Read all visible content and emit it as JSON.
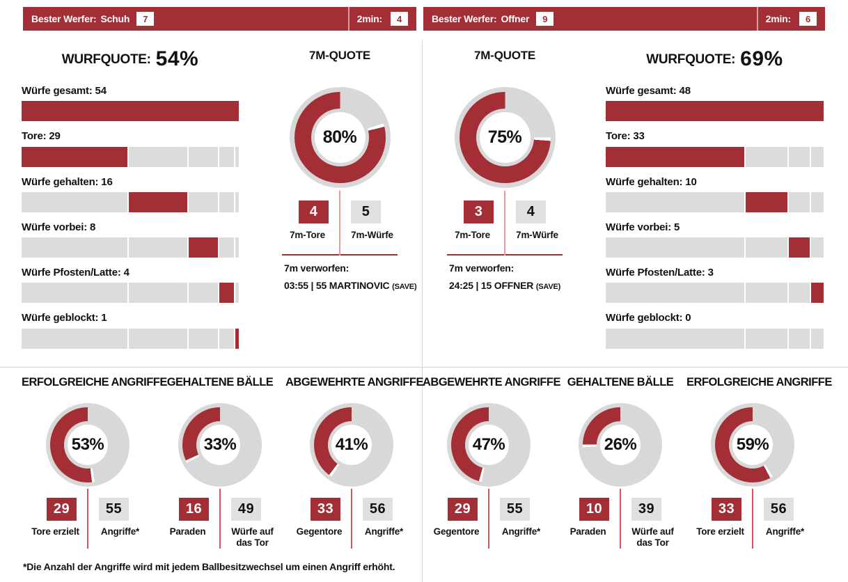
{
  "colors": {
    "accent": "#a32e36",
    "bar_gray": "#dcdcdc",
    "donut_gray": "#d8d8d8",
    "box_gray": "#e0e0e0",
    "pink_line": "#e59a9d",
    "red_line": "#d4575c",
    "divider": "#d2d2d2"
  },
  "headers": [
    {
      "label": "Bester Werfer:",
      "name": "Schuh",
      "number": "7",
      "twomin_label": "2min:",
      "twomin_value": "4"
    },
    {
      "label": "Bester Werfer:",
      "name": "Offner",
      "number": "9",
      "twomin_label": "2min:",
      "twomin_value": "6"
    }
  ],
  "teams": [
    {
      "heading_label": "WURFQUOTE:",
      "heading_value": "54%",
      "bars": [
        {
          "label": "Würfe gesamt: 54",
          "value": 54,
          "total": true
        },
        {
          "label": "Tore: 29",
          "value": 29
        },
        {
          "label": "Würfe gehalten: 16",
          "value": 16
        },
        {
          "label": "Würfe vorbei: 8",
          "value": 8
        },
        {
          "label": "Würfe Pfosten/Latte: 4",
          "value": 4
        },
        {
          "label": "Würfe geblockt: 1",
          "value": 1
        }
      ],
      "sevenm": {
        "title": "7M-QUOTE",
        "pct": 80,
        "pct_label": "80%",
        "goals": "4",
        "throws": "5",
        "goals_label": "7m-Tore",
        "throws_label": "7m-Würfe",
        "missed_label": "7m verworfen:",
        "missed_detail": "03:55 | 55 MARTINOVIC",
        "missed_suffix": "(SAVE)"
      }
    },
    {
      "heading_label": "WURFQUOTE:",
      "heading_value": "69%",
      "bars": [
        {
          "label": "Würfe gesamt: 48",
          "value": 48,
          "total": true
        },
        {
          "label": "Tore: 33",
          "value": 33
        },
        {
          "label": "Würfe gehalten: 10",
          "value": 10
        },
        {
          "label": "Würfe vorbei: 5",
          "value": 5
        },
        {
          "label": "Würfe Pfosten/Latte: 3",
          "value": 3
        },
        {
          "label": "Würfe geblockt: 0",
          "value": 0
        }
      ],
      "sevenm": {
        "title": "7M-QUOTE",
        "pct": 75,
        "pct_label": "75%",
        "goals": "3",
        "throws": "4",
        "goals_label": "7m-Tore",
        "throws_label": "7m-Würfe",
        "missed_label": "7m verworfen:",
        "missed_detail": "24:25 | 15 OFFNER",
        "missed_suffix": "(SAVE)"
      }
    }
  ],
  "bottom": [
    {
      "title": "ERFOLGREICHE ANGRIFFE",
      "pct": 53,
      "pct_label": "53%",
      "red_value": "29",
      "gray_value": "55",
      "red_label": "Tore erzielt",
      "gray_label": "Angriffe*"
    },
    {
      "title": "GEHALTENE BÄLLE",
      "pct": 33,
      "pct_label": "33%",
      "red_value": "16",
      "gray_value": "49",
      "red_label": "Paraden",
      "gray_label": "Würfe auf das Tor"
    },
    {
      "title": "ABGEWEHRTE ANGRIFFE",
      "pct": 41,
      "pct_label": "41%",
      "red_value": "33",
      "gray_value": "56",
      "red_label": "Gegentore",
      "gray_label": "Angriffe*"
    },
    {
      "title": "ABGEWEHRTE ANGRIFFE",
      "pct": 47,
      "pct_label": "47%",
      "red_value": "29",
      "gray_value": "55",
      "red_label": "Gegentore",
      "gray_label": "Angriffe*"
    },
    {
      "title": "GEHALTENE BÄLLE",
      "pct": 26,
      "pct_label": "26%",
      "red_value": "10",
      "gray_value": "39",
      "red_label": "Paraden",
      "gray_label": "Würfe auf das Tor"
    },
    {
      "title": "ERFOLGREICHE ANGRIFFE",
      "pct": 59,
      "pct_label": "59%",
      "red_value": "33",
      "gray_value": "56",
      "red_label": "Tore erzielt",
      "gray_label": "Angriffe*"
    }
  ],
  "footnote": "*Die Anzahl der Angriffe wird mit jedem Ballbesitzwechsel um einen Angriff erhöht.",
  "chart_data": [
    {
      "type": "bar",
      "title": "WURFQUOTE links: 54%",
      "orientation": "horizontal-stacked",
      "categories": [
        "Würfe gesamt",
        "Tore",
        "Würfe gehalten",
        "Würfe vorbei",
        "Würfe Pfosten/Latte",
        "Würfe geblockt"
      ],
      "values": [
        54,
        29,
        16,
        8,
        4,
        1
      ]
    },
    {
      "type": "pie",
      "title": "7M-QUOTE links",
      "percent": 80,
      "labels": [
        "7m-Tore",
        "7m-Würfe"
      ],
      "values": [
        4,
        5
      ],
      "annotation": "7m verworfen: 03:55 | 55 MARTINOVIC (SAVE)"
    },
    {
      "type": "pie",
      "title": "7M-QUOTE rechts",
      "percent": 75,
      "labels": [
        "7m-Tore",
        "7m-Würfe"
      ],
      "values": [
        3,
        4
      ],
      "annotation": "7m verworfen: 24:25 | 15 OFFNER (SAVE)"
    },
    {
      "type": "bar",
      "title": "WURFQUOTE rechts: 69%",
      "orientation": "horizontal-stacked",
      "categories": [
        "Würfe gesamt",
        "Tore",
        "Würfe gehalten",
        "Würfe vorbei",
        "Würfe Pfosten/Latte",
        "Würfe geblockt"
      ],
      "values": [
        48,
        33,
        10,
        5,
        3,
        0
      ]
    },
    {
      "type": "pie",
      "title": "ERFOLGREICHE ANGRIFFE links",
      "percent": 53,
      "labels": [
        "Tore erzielt",
        "Angriffe*"
      ],
      "values": [
        29,
        55
      ]
    },
    {
      "type": "pie",
      "title": "GEHALTENE BÄLLE links",
      "percent": 33,
      "labels": [
        "Paraden",
        "Würfe auf das Tor"
      ],
      "values": [
        16,
        49
      ]
    },
    {
      "type": "pie",
      "title": "ABGEWEHRTE ANGRIFFE links",
      "percent": 41,
      "labels": [
        "Gegentore",
        "Angriffe*"
      ],
      "values": [
        33,
        56
      ]
    },
    {
      "type": "pie",
      "title": "ABGEWEHRTE ANGRIFFE rechts",
      "percent": 47,
      "labels": [
        "Gegentore",
        "Angriffe*"
      ],
      "values": [
        29,
        55
      ]
    },
    {
      "type": "pie",
      "title": "GEHALTENE BÄLLE rechts",
      "percent": 26,
      "labels": [
        "Paraden",
        "Würfe auf das Tor"
      ],
      "values": [
        10,
        39
      ]
    },
    {
      "type": "pie",
      "title": "ERFOLGREICHE ANGRIFFE rechts",
      "percent": 59,
      "labels": [
        "Tore erzielt",
        "Angriffe*"
      ],
      "values": [
        33,
        56
      ]
    }
  ]
}
